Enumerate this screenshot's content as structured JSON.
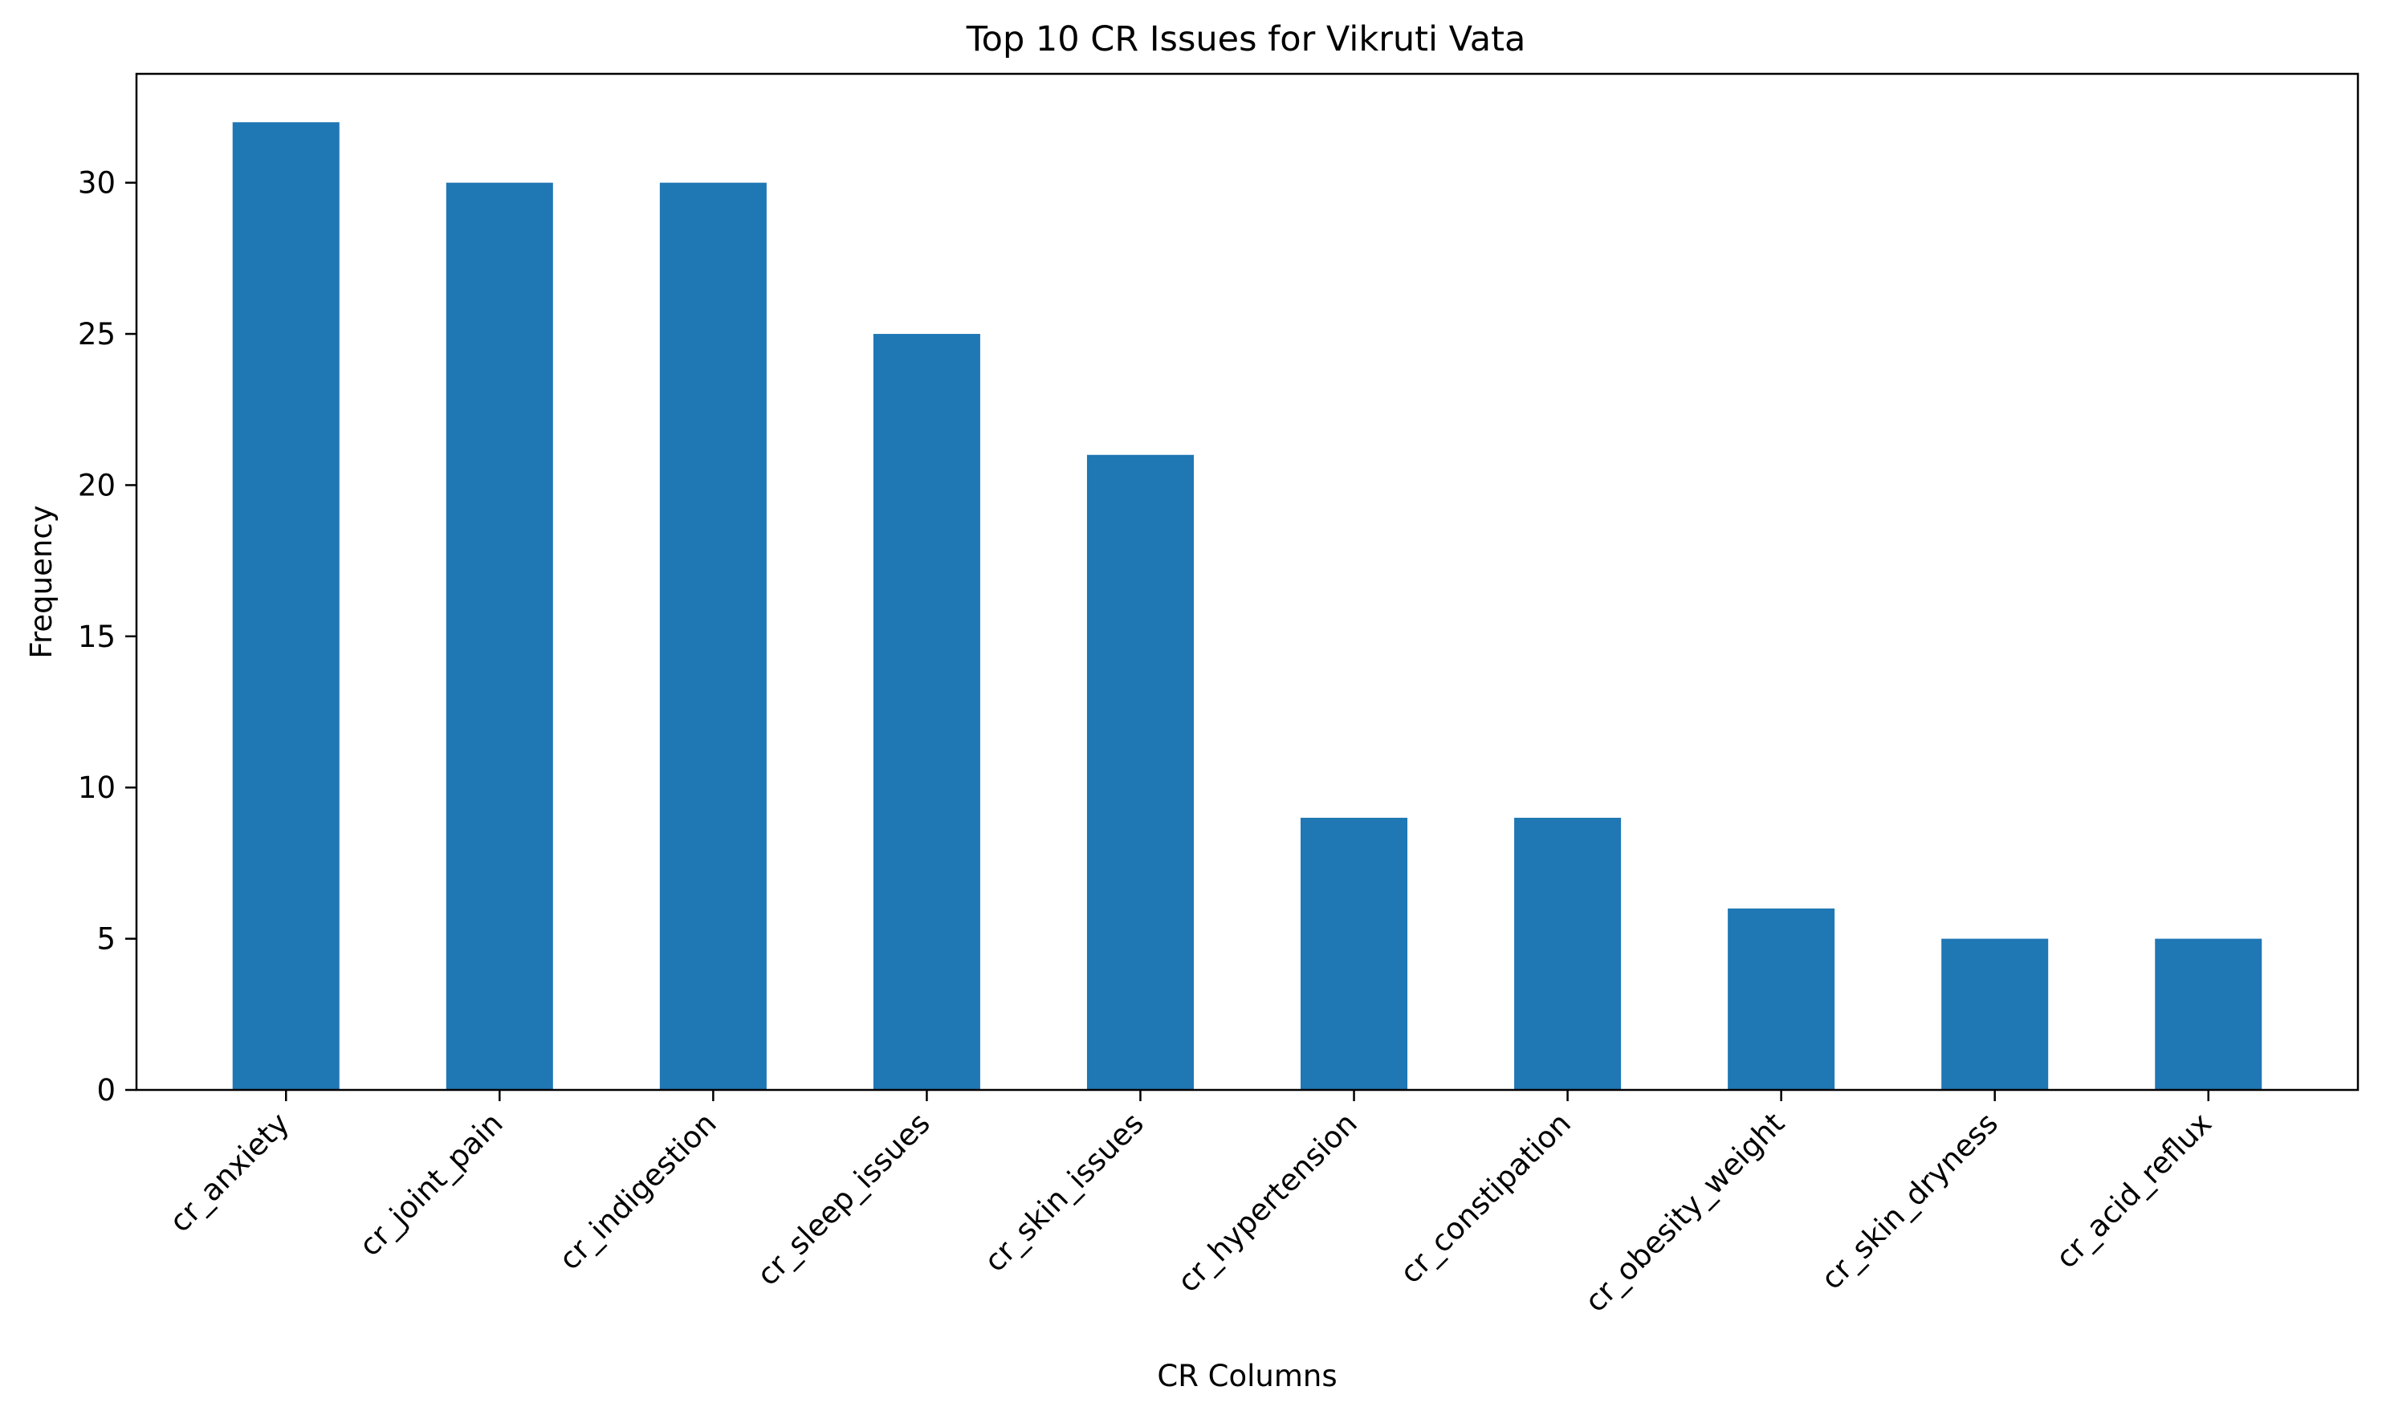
{
  "chart_data": {
    "type": "bar",
    "title": "Top 10 CR Issues for Vikruti Vata",
    "xlabel": "CR Columns",
    "ylabel": "Frequency",
    "categories": [
      "cr_anxiety",
      "cr_joint_pain",
      "cr_indigestion",
      "cr_sleep_issues",
      "cr_skin_issues",
      "cr_hypertension",
      "cr_constipation",
      "cr_obesity_weight",
      "cr_skin_dryness",
      "cr_acid_reflux"
    ],
    "values": [
      32,
      30,
      30,
      25,
      21,
      9,
      9,
      6,
      5,
      5
    ],
    "ylim": [
      0,
      33.6
    ],
    "yticks": [
      0,
      5,
      10,
      15,
      20,
      25,
      30
    ],
    "grid": false,
    "bar_color": "#1f77b4"
  }
}
